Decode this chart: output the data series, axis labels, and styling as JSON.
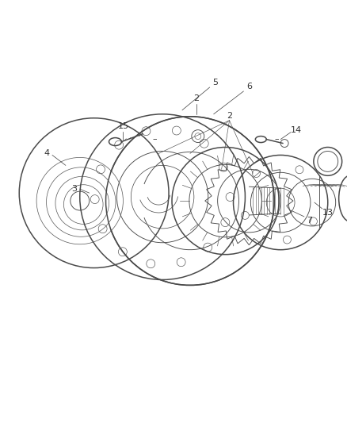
{
  "bg_color": "#ffffff",
  "line_color": "#4a4a4a",
  "text_color": "#333333",
  "fig_width": 4.39,
  "fig_height": 5.33,
  "dpi": 100,
  "lw_main": 1.1,
  "lw_thin": 0.65,
  "lw_leader": 0.55,
  "font_size": 8.0
}
